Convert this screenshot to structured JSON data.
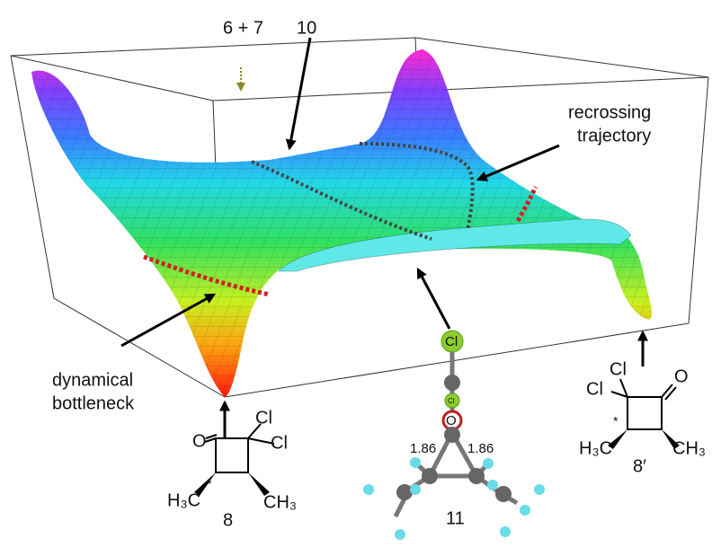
{
  "labels": {
    "reactants": "6 + 7",
    "intermediate": "10",
    "recrossing": [
      "recrossing",
      "trajectory"
    ],
    "bottleneck": [
      "dynamical",
      "bottleneck"
    ]
  },
  "molecule_8": {
    "name": "8",
    "oxygen": "O",
    "chlorines": [
      "Cl",
      "Cl"
    ],
    "left_methyl": "H₃C",
    "right_methyl": "CH₃",
    "stereo": "*"
  },
  "molecule_11": {
    "name": "11",
    "top_atom": "Cl",
    "middle_atom": "Cl",
    "oxygen": "O",
    "distances": [
      "1.86",
      "1.86"
    ]
  },
  "molecule_8prime": {
    "name": "8′",
    "oxygen": "O",
    "chlorines": [
      "Cl",
      "Cl"
    ],
    "left_methyl": "H₃C",
    "right_methyl": "CH₃",
    "stereo": "*"
  }
}
